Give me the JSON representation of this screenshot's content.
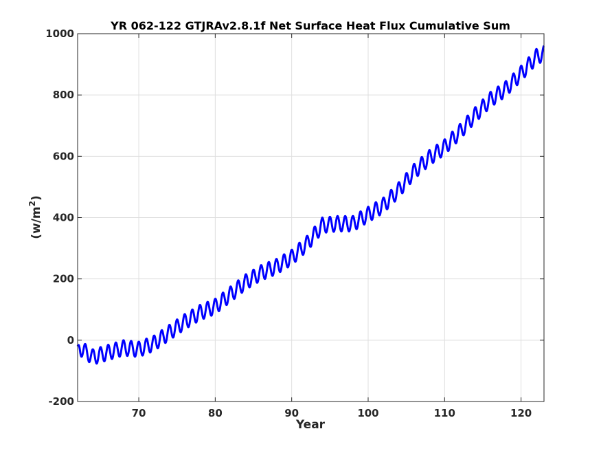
{
  "chart_data": {
    "type": "line",
    "title": "YR 062-122 GTJRAv2.8.1f Net Surface Heat Flux  Cumulative Sum",
    "xlabel": "Year",
    "ylabel_base": "(w/m",
    "ylabel_sup": "2",
    "ylabel_close": ")",
    "xlim": [
      62,
      123
    ],
    "ylim": [
      -200,
      1000
    ],
    "xticks": [
      "70",
      "80",
      "90",
      "100",
      "110",
      "120"
    ],
    "yticks": [
      "-200",
      "0",
      "200",
      "400",
      "600",
      "800",
      "1000"
    ],
    "grid": true,
    "seasonal_cycle_period_years": 1,
    "seasonal_cycle_amplitude": 25,
    "series": [
      {
        "color": "#0000ff",
        "trend_x": [
          62,
          64,
          66,
          68,
          70,
          72,
          74,
          76,
          78,
          80,
          82,
          84,
          86,
          88,
          90,
          92,
          94,
          96,
          98,
          100,
          102,
          104,
          106,
          108,
          110,
          112,
          114,
          116,
          118,
          120,
          122,
          123
        ],
        "trend_y": [
          -20,
          -55,
          -40,
          -25,
          -30,
          -10,
          25,
          60,
          90,
          110,
          150,
          190,
          220,
          240,
          270,
          315,
          375,
          380,
          380,
          410,
          440,
          490,
          550,
          595,
          630,
          680,
          735,
          785,
          820,
          870,
          925,
          935
        ]
      }
    ]
  }
}
